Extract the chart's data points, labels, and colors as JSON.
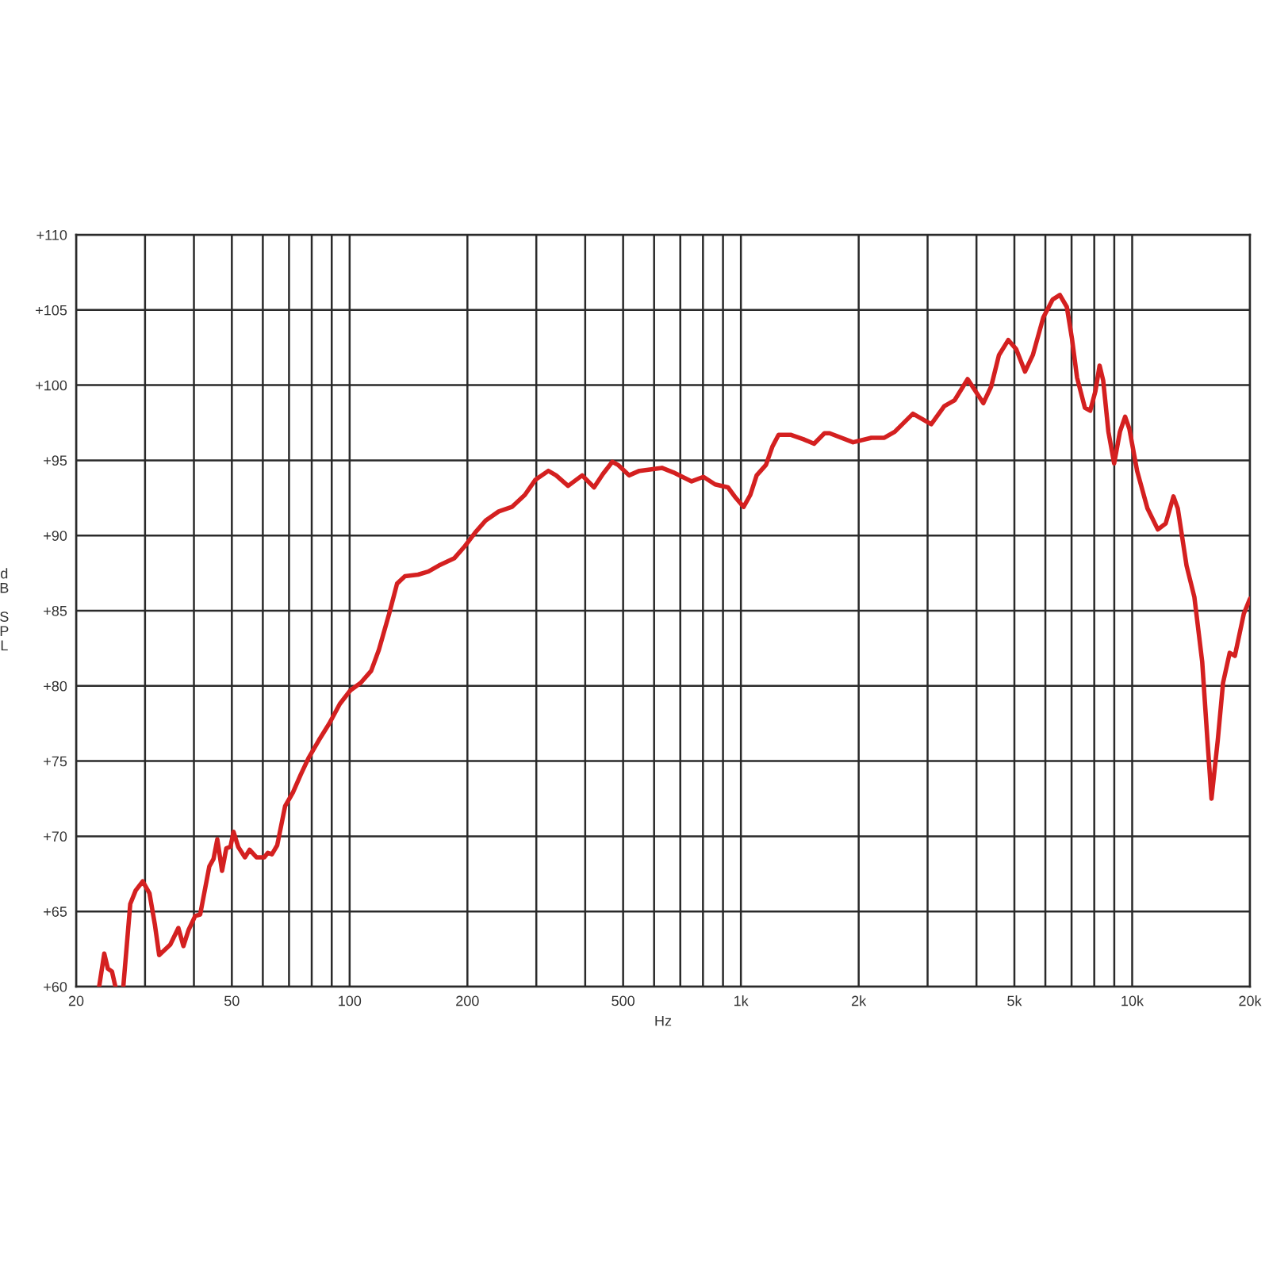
{
  "chart_data": {
    "type": "line",
    "xlabel": "Hz",
    "ylabel": "dB SPL",
    "log": "x",
    "grid": true,
    "marker": "none",
    "line_style": "solid",
    "xlim": [
      20,
      20000
    ],
    "ylim": [
      60,
      110
    ],
    "xticks": [
      20,
      {
        "value": 30,
        "label": null
      },
      {
        "value": 40,
        "label": null
      },
      50,
      {
        "value": 60,
        "label": null
      },
      {
        "value": 70,
        "label": null
      },
      {
        "value": 80,
        "label": null
      },
      {
        "value": 90,
        "label": null
      },
      100,
      200,
      {
        "value": 300,
        "label": null
      },
      {
        "value": 400,
        "label": null
      },
      500,
      {
        "value": 600,
        "label": null
      },
      {
        "value": 700,
        "label": null
      },
      {
        "value": 800,
        "label": null
      },
      {
        "value": 900,
        "label": null
      },
      {
        "value": 1000,
        "label": "1k"
      },
      {
        "value": 2000,
        "label": "2k"
      },
      {
        "value": 3000,
        "label": null
      },
      {
        "value": 4000,
        "label": null
      },
      {
        "value": 5000,
        "label": "5k"
      },
      {
        "value": 6000,
        "label": null
      },
      {
        "value": 7000,
        "label": null
      },
      {
        "value": 8000,
        "label": null
      },
      {
        "value": 9000,
        "label": null
      },
      {
        "value": 10000,
        "label": "10k"
      },
      {
        "value": 20000,
        "label": "20k"
      }
    ],
    "yticks": [
      {
        "value": 60,
        "label": "+60"
      },
      {
        "value": 65,
        "label": "+65"
      },
      {
        "value": 70,
        "label": "+70"
      },
      {
        "value": 75,
        "label": "+75"
      },
      {
        "value": 80,
        "label": "+80"
      },
      {
        "value": 85,
        "label": "+85"
      },
      {
        "value": 90,
        "label": "+90"
      },
      {
        "value": 95,
        "label": "+95"
      },
      {
        "value": 100,
        "label": "+100"
      },
      {
        "value": 105,
        "label": "+105"
      },
      {
        "value": 110,
        "label": "+110"
      }
    ],
    "series": [
      {
        "color": "#d42020",
        "x": [
          22.9,
          23.6,
          24.1,
          24.7,
          25.2,
          25.8,
          26.4,
          27.5,
          28.4,
          29.6,
          30.8,
          31.8,
          32.6,
          34.8,
          36.5,
          37.6,
          38.8,
          40.3,
          41.5,
          43.8,
          44.9,
          45.9,
          47.2,
          48.4,
          49.6,
          50.5,
          51.9,
          54.0,
          55.5,
          57.8,
          60.5,
          61.8,
          63.3,
          65.3,
          68.4,
          71.6,
          75.0,
          78.5,
          83.5,
          88.7,
          94.4,
          100.4,
          106.7,
          113.5,
          118.8,
          126.2,
          132.2,
          138.5,
          149.6,
          158.9,
          169.0,
          185.3,
          197.1,
          209.4,
          222.7,
          240.4,
          259.8,
          280.4,
          298.2,
          321.9,
          337.1,
          361.7,
          392.9,
          421.4,
          444.1,
          469.1,
          485,
          517.7,
          550.3,
          628.1,
          671.5,
          748.2,
          802.3,
          859.2,
          926.8,
          970.6,
          1016,
          1057,
          1097,
          1159,
          1203,
          1248,
          1339,
          1446,
          1538,
          1635,
          1685,
          1935,
          2155,
          2326,
          2473,
          2752,
          3065,
          3309,
          3518,
          3798,
          4164,
          4360,
          4566,
          4824,
          5051,
          5322,
          5573,
          5927,
          6264,
          6533,
          6807,
          7016,
          7230,
          7570,
          7812,
          8054,
          8255,
          8433,
          8694,
          8993,
          9305,
          9594,
          9834,
          10295,
          10940,
          11630,
          12180,
          12750,
          13080,
          13770,
          14420,
          15100,
          15570,
          15950,
          16550,
          17070,
          17750,
          18300,
          19290,
          20000
        ],
        "values": [
          60.0,
          62.2,
          61.2,
          61.0,
          60.0,
          null,
          60.0,
          65.5,
          66.4,
          67.0,
          66.2,
          64.1,
          62.1,
          62.8,
          63.9,
          62.7,
          63.8,
          64.7,
          64.8,
          68.0,
          68.5,
          69.8,
          67.7,
          69.2,
          69.3,
          70.3,
          69.3,
          68.6,
          69.1,
          68.6,
          68.6,
          68.9,
          68.8,
          69.4,
          72.0,
          72.9,
          74.1,
          75.2,
          76.4,
          77.5,
          78.8,
          79.7,
          80.2,
          81.0,
          82.4,
          84.8,
          86.8,
          87.3,
          87.4,
          87.6,
          88.0,
          88.5,
          89.3,
          90.2,
          91.0,
          91.6,
          91.9,
          92.7,
          93.7,
          94.3,
          94.0,
          93.3,
          94.0,
          93.2,
          94.1,
          94.9,
          94.7,
          94.0,
          94.3,
          94.5,
          94.2,
          93.6,
          93.9,
          93.4,
          93.2,
          92.5,
          91.9,
          92.7,
          94.0,
          94.7,
          95.9,
          96.7,
          96.7,
          96.4,
          96.1,
          96.8,
          96.8,
          96.2,
          96.5,
          96.5,
          96.9,
          98.1,
          97.4,
          98.6,
          99.0,
          100.4,
          98.8,
          99.9,
          102.0,
          103.0,
          102.4,
          100.9,
          102.0,
          104.5,
          105.7,
          106.0,
          105.2,
          103.1,
          100.5,
          98.5,
          98.3,
          99.6,
          101.3,
          100.3,
          96.9,
          94.8,
          96.9,
          97.9,
          97.1,
          94.3,
          91.8,
          90.4,
          90.8,
          92.6,
          91.8,
          88.0,
          85.9,
          81.6,
          76.4,
          72.5,
          76.4,
          80.2,
          82.2,
          82.0,
          84.8,
          85.8
        ]
      }
    ]
  }
}
